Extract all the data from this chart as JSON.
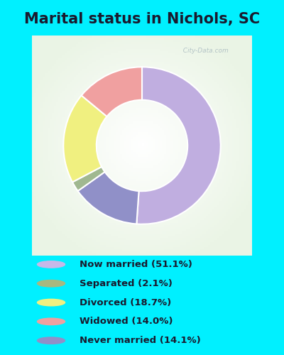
{
  "title": "Marital status in Nichols, SC",
  "slices": [
    51.1,
    14.1,
    2.1,
    18.7,
    14.0
  ],
  "colors": [
    "#c0aee0",
    "#9090c8",
    "#a0b890",
    "#f0f080",
    "#f0a0a0"
  ],
  "labels": [
    "Now married (51.1%)",
    "Separated (2.1%)",
    "Divorced (18.7%)",
    "Widowed (14.0%)",
    "Never married (14.1%)"
  ],
  "legend_colors": [
    "#c8b8e8",
    "#a8b880",
    "#f0f080",
    "#f0a0a0",
    "#9090c8"
  ],
  "bg_cyan": "#00f0ff",
  "bg_chart": "#e8f5e5",
  "watermark": "  City-Data.com",
  "title_fontsize": 15,
  "donut_width": 0.42
}
